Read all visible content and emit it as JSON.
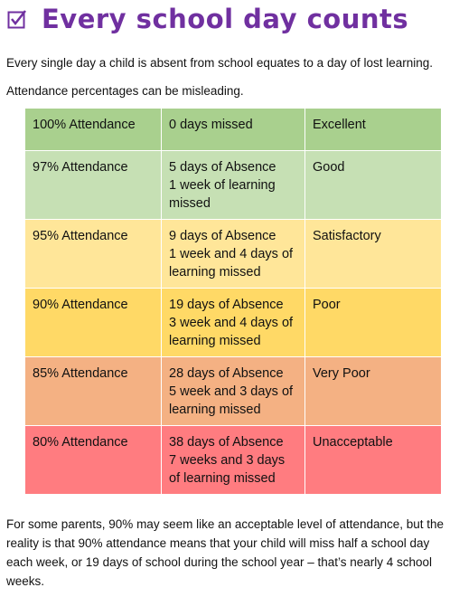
{
  "header": {
    "title": "Every school day counts"
  },
  "intro": [
    "Every single day a child is absent from school equates to a day of lost learning.",
    "Attendance percentages can be misleading."
  ],
  "table": {
    "rows": [
      [
        "100% Attendance",
        [
          "0 days missed"
        ],
        "Excellent"
      ],
      [
        "97% Attendance",
        [
          "5 days of Absence",
          "1 week of learning missed"
        ],
        "Good"
      ],
      [
        "95% Attendance",
        [
          "9 days of Absence",
          "1 week and 4 days of learning missed"
        ],
        "Satisfactory"
      ],
      [
        "90% Attendance",
        [
          "19 days of Absence",
          "3 week and 4 days of learning missed"
        ],
        "Poor"
      ],
      [
        "85% Attendance",
        [
          "28 days of Absence",
          "5 week and 3 days of learning missed"
        ],
        "Very Poor"
      ],
      [
        "80% Attendance",
        [
          "38 days of Absence",
          "7 weeks and 3 days of learning missed"
        ],
        "Unacceptable"
      ]
    ]
  },
  "footer": "For some parents, 90% may seem like an acceptable level of attendance, but the reality is that 90% attendance means that your child will miss half a school day each week, or 19 days of school during the school year – that’s nearly 4 school weeks."
}
